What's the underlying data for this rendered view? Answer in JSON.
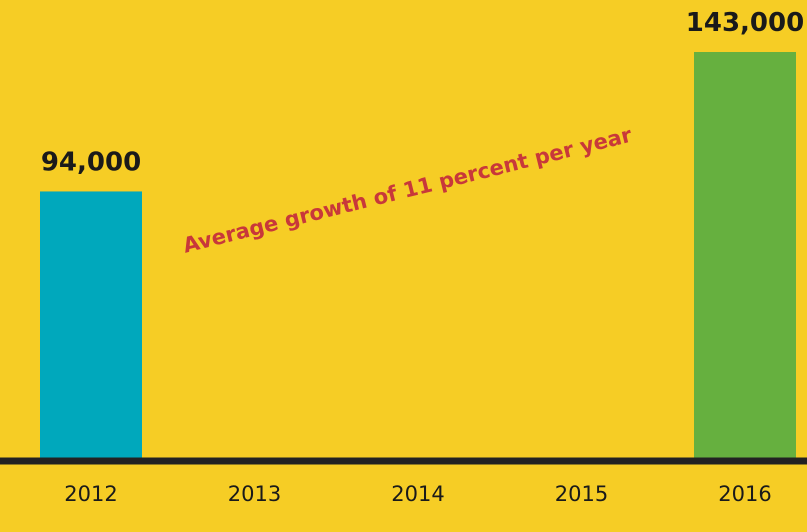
{
  "colors": {
    "background": "#f6cd25",
    "baseline": "#222222",
    "annotation": "#c8383a"
  },
  "chart_data": {
    "type": "bar",
    "categories": [
      "2012",
      "2013",
      "2014",
      "2015",
      "2016"
    ],
    "values": [
      94000,
      null,
      null,
      null,
      143000
    ],
    "data_labels": [
      "94,000",
      "",
      "",
      "",
      "143,000"
    ],
    "bar_colors": [
      "#00a8bc",
      null,
      null,
      null,
      "#66b03f"
    ],
    "ylim": [
      0,
      143000
    ],
    "annotation": "Average growth of 11 percent per year",
    "grid": false,
    "legend": "none"
  }
}
